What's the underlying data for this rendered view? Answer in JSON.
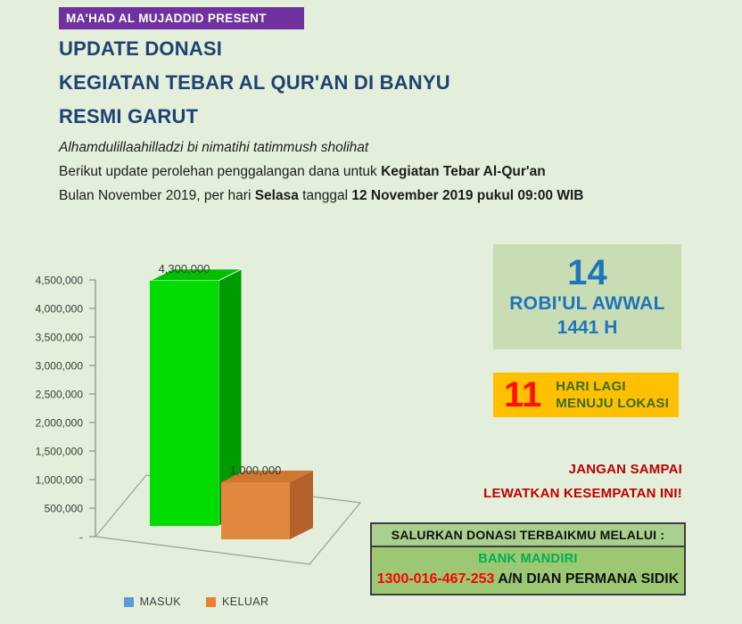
{
  "banner": {
    "text": "MA'HAD AL MUJADDID PRESENT",
    "bg": "#7030A0"
  },
  "title": {
    "line1": "UPDATE DONASI",
    "line2": "KEGIATAN TEBAR AL QUR'AN DI BANYU",
    "line3": "RESMI GARUT"
  },
  "intro": {
    "line1_italic": "Alhamdulillaahilladzi bi nimatihi tatimmush sholihat",
    "line2_normal": "Berikut update perolehan penggalangan dana untuk ",
    "line2_bold": "Kegiatan Tebar Al-Qur'an",
    "line3_part1": "Bulan November 2019, per hari ",
    "line3_bold1": "Selasa",
    "line3_part2": " tanggal ",
    "line3_bold2": "12 November 2019 pukul 09:00 WIB"
  },
  "chart_data": {
    "type": "bar",
    "style": "3d-column",
    "categories": [
      "MASUK",
      "KELUAR"
    ],
    "values": [
      4300000,
      1000000
    ],
    "data_labels": [
      "4,300,000",
      "1,000,000"
    ],
    "y_ticks": [
      "-",
      "500,000",
      "1,000,000",
      "1,500,000",
      "2,000,000",
      "2,500,000",
      "3,000,000",
      "3,500,000",
      "4,000,000",
      "4,500,000"
    ],
    "ylim": [
      0,
      4500000
    ],
    "title": "",
    "xlabel": "",
    "ylabel": "",
    "grid": false,
    "legend_position": "bottom",
    "series_colors": [
      {
        "name": "MASUK",
        "legend": "#5B9BD5",
        "front": "#00DC00",
        "top": "#00BE00",
        "side": "#009B00"
      },
      {
        "name": "KELUAR",
        "legend": "#ED7D31",
        "front": "#E0883E",
        "top": "#CE7730",
        "side": "#B4622A"
      }
    ]
  },
  "hijri_date": {
    "day": "14",
    "month": "ROBI'UL AWWAL",
    "year": "1441 H",
    "bg": "#C9DDB5",
    "text_color": "#1E75BC"
  },
  "countdown": {
    "number": "11",
    "line1": "HARI LAGI",
    "line2": "MENUJU LOKASI",
    "bg": "#FFC000",
    "number_color": "#FE1010",
    "text_color": "#3C6B1F"
  },
  "warning": {
    "line1": "JANGAN SAMPAI",
    "line2": "LEWATKAN KESEMPATAN INI!",
    "color": "#C00000"
  },
  "donation": {
    "header": "SALURKAN DONASI TERBAIKMU MELALUI :",
    "bank": "BANK MANDIRI",
    "account_number": "1300-016-467-253",
    "account_name": "A/N DIAN PERMANA SIDIK",
    "bank_color": "#00B050",
    "number_color": "#FF0000"
  }
}
